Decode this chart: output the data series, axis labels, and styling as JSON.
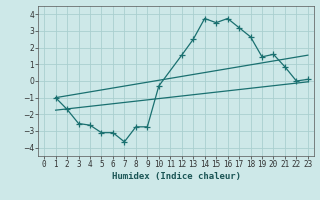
{
  "bg_color": "#cde8e8",
  "grid_color": "#aacfcf",
  "line_color": "#1a7070",
  "x_label": "Humidex (Indice chaleur)",
  "ylim": [
    -4.5,
    4.5
  ],
  "xlim": [
    -0.5,
    23.5
  ],
  "yticks": [
    -4,
    -3,
    -2,
    -1,
    0,
    1,
    2,
    3,
    4
  ],
  "xticks": [
    0,
    1,
    2,
    3,
    4,
    5,
    6,
    7,
    8,
    9,
    10,
    11,
    12,
    13,
    14,
    15,
    16,
    17,
    18,
    19,
    20,
    21,
    22,
    23
  ],
  "curve1_x": [
    1,
    2,
    3,
    4,
    5,
    6,
    7,
    8,
    9,
    10,
    12,
    13,
    14,
    15,
    16,
    17,
    18,
    19,
    20,
    21,
    22,
    23
  ],
  "curve1_y": [
    -1.0,
    -1.7,
    -2.55,
    -2.65,
    -3.1,
    -3.1,
    -3.65,
    -2.75,
    -2.75,
    -0.3,
    1.55,
    2.5,
    3.75,
    3.5,
    3.75,
    3.2,
    2.65,
    1.45,
    1.6,
    0.85,
    0.0,
    0.1
  ],
  "line2_x": [
    1,
    23
  ],
  "line2_y": [
    -1.75,
    -0.05
  ],
  "line3_x": [
    1,
    23
  ],
  "line3_y": [
    -1.0,
    1.55
  ],
  "marker_size": 4,
  "tick_fontsize": 5.5,
  "label_fontsize": 6.5
}
